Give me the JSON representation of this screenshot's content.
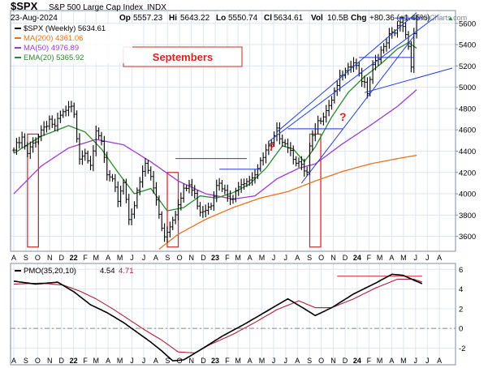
{
  "header": {
    "symbol": "$SPX",
    "description": "S&P 500 Large Cap Index",
    "exchange": "INDX",
    "date": "23-Aug-2024",
    "op_label": "Op",
    "op": "5557.23",
    "hi_label": "Hi",
    "hi": "5643.22",
    "lo_label": "Lo",
    "lo": "5550.74",
    "cl_label": "Cl",
    "cl": "5634.61",
    "vol_label": "Vol",
    "vol": "10.5B",
    "chg_label": "Chg",
    "chg": "+80.36 (+1.45%)",
    "chg_arrow": "▲",
    "watermark": "@ StockCharts.com"
  },
  "legend": {
    "price": {
      "label": "$SPX (Weekly) 5634.61",
      "color": "#000000"
    },
    "ma200": {
      "label": "MA(200) 4361.06",
      "color": "#e8731e"
    },
    "ma50": {
      "label": "MA(50) 4976.89",
      "color": "#9c3ccc"
    },
    "ema20": {
      "label": "EMA(20) 5365.92",
      "color": "#2a8a2a"
    }
  },
  "annotations": {
    "septembers": "Septembers",
    "question_1": "?",
    "question_2": "?"
  },
  "pmo_legend": {
    "label": "PMO(35,20,10)",
    "value1": "4.54",
    "value2": "4.71",
    "color1": "#000000",
    "color2": "#b0213b"
  },
  "colors": {
    "grid": "#dfe6f0",
    "box_red": "#d42424",
    "trend_blue": "#1f3fd6",
    "label_red": "#d42424"
  },
  "chart_data": [
    {
      "type": "line",
      "title": "$SPX S&P 500 Large Cap Index INDX",
      "y_axis_labels": [
        "3600",
        "3800",
        "4000",
        "4200",
        "4400",
        "4600",
        "4800",
        "5000",
        "5200",
        "5400",
        "5600"
      ],
      "y_axis_values": [
        3600,
        3800,
        4000,
        4200,
        4400,
        4600,
        4800,
        5000,
        5200,
        5400,
        5600
      ],
      "ylim": [
        3460,
        5720
      ],
      "x_axis_labels": [
        "A",
        "S",
        "O",
        "N",
        "D",
        "22",
        "F",
        "M",
        "A",
        "M",
        "J",
        "J",
        "A",
        "S",
        "O",
        "N",
        "D",
        "23",
        "F",
        "M",
        "A",
        "M",
        "J",
        "J",
        "A",
        "S",
        "O",
        "N",
        "D",
        "24",
        "F",
        "M",
        "A",
        "M",
        "J",
        "J",
        "A"
      ],
      "x_label_weeks": [
        0,
        4.4,
        8.7,
        13.1,
        17.4,
        21.8,
        26.1,
        30,
        34.4,
        38.7,
        43.1,
        47.4,
        51.8,
        56.1,
        60.5,
        64.8,
        69.2,
        73.5,
        77.9,
        81.8,
        86.1,
        90.5,
        94.8,
        99.2,
        103.5,
        107.9,
        112.2,
        116.6,
        120.9,
        125.3,
        129.6,
        133.5,
        137.9,
        142.2,
        146.6,
        150.9,
        155.3
      ],
      "bold_labels": [
        "22",
        "23",
        "24"
      ],
      "weeks": 160,
      "series": [
        {
          "name": "$SPX (Weekly)",
          "style": "ohlc-bars",
          "keypoints": [
            [
              0,
              4410
            ],
            [
              3,
              4510
            ],
            [
              5,
              4360
            ],
            [
              7,
              4470
            ],
            [
              10,
              4600
            ],
            [
              13,
              4700
            ],
            [
              15,
              4620
            ],
            [
              17,
              4720
            ],
            [
              19,
              4770
            ],
            [
              21,
              4800
            ],
            [
              22,
              4720
            ],
            [
              24,
              4360
            ],
            [
              26,
              4400
            ],
            [
              28,
              4300
            ],
            [
              30,
              4550
            ],
            [
              32,
              4480
            ],
            [
              34,
              4170
            ],
            [
              36,
              4100
            ],
            [
              38,
              3950
            ],
            [
              40,
              4120
            ],
            [
              42,
              3780
            ],
            [
              44,
              3900
            ],
            [
              46,
              4100
            ],
            [
              48,
              4280
            ],
            [
              50,
              4150
            ],
            [
              52,
              3950
            ],
            [
              54,
              3700
            ],
            [
              55,
              3600
            ],
            [
              56,
              3660
            ],
            [
              58,
              3780
            ],
            [
              60,
              3890
            ],
            [
              62,
              4020
            ],
            [
              64,
              4080
            ],
            [
              66,
              3980
            ],
            [
              68,
              3850
            ],
            [
              70,
              3870
            ],
            [
              72,
              3920
            ],
            [
              74,
              4110
            ],
            [
              76,
              4040
            ],
            [
              78,
              3970
            ],
            [
              80,
              3920
            ],
            [
              82,
              4100
            ],
            [
              84,
              4130
            ],
            [
              86,
              4150
            ],
            [
              88,
              4200
            ],
            [
              90,
              4280
            ],
            [
              92,
              4390
            ],
            [
              94,
              4450
            ],
            [
              96,
              4580
            ],
            [
              98,
              4520
            ],
            [
              100,
              4460
            ],
            [
              102,
              4360
            ],
            [
              104,
              4280
            ],
            [
              106,
              4200
            ],
            [
              107,
              4180
            ],
            [
              108,
              4420
            ],
            [
              110,
              4600
            ],
            [
              112,
              4720
            ],
            [
              114,
              4800
            ],
            [
              116,
              4900
            ],
            [
              118,
              5040
            ],
            [
              120,
              5100
            ],
            [
              122,
              5150
            ],
            [
              124,
              5230
            ],
            [
              126,
              5120
            ],
            [
              128,
              5050
            ],
            [
              129,
              4970
            ],
            [
              131,
              5220
            ],
            [
              133,
              5300
            ],
            [
              135,
              5350
            ],
            [
              137,
              5470
            ],
            [
              139,
              5500
            ],
            [
              141,
              5620
            ],
            [
              142,
              5580
            ],
            [
              144,
              5420
            ],
            [
              145,
              5200
            ],
            [
              146,
              5510
            ],
            [
              147,
              5634.61
            ]
          ]
        },
        {
          "name": "MA(200)",
          "value": 4361.06,
          "keypoints": [
            [
              53,
              3480
            ],
            [
              60,
              3620
            ],
            [
              70,
              3760
            ],
            [
              80,
              3870
            ],
            [
              90,
              3960
            ],
            [
              100,
              4020
            ],
            [
              110,
              4120
            ],
            [
              120,
              4210
            ],
            [
              130,
              4280
            ],
            [
              140,
              4330
            ],
            [
              147,
              4361.06
            ]
          ]
        },
        {
          "name": "MA(50)",
          "value": 4976.89,
          "keypoints": [
            [
              0,
              4000
            ],
            [
              10,
              4260
            ],
            [
              20,
              4430
            ],
            [
              30,
              4510
            ],
            [
              40,
              4460
            ],
            [
              50,
              4300
            ],
            [
              60,
              4120
            ],
            [
              70,
              4000
            ],
            [
              80,
              3950
            ],
            [
              88,
              3980
            ],
            [
              96,
              4140
            ],
            [
              104,
              4240
            ],
            [
              110,
              4280
            ],
            [
              120,
              4470
            ],
            [
              130,
              4640
            ],
            [
              140,
              4820
            ],
            [
              147,
              4976.89
            ]
          ]
        },
        {
          "name": "EMA(20)",
          "value": 5365.92,
          "keypoints": [
            [
              0,
              4380
            ],
            [
              10,
              4540
            ],
            [
              20,
              4640
            ],
            [
              26,
              4580
            ],
            [
              32,
              4420
            ],
            [
              38,
              4200
            ],
            [
              44,
              4000
            ],
            [
              50,
              4050
            ],
            [
              56,
              3840
            ],
            [
              62,
              3870
            ],
            [
              68,
              3980
            ],
            [
              74,
              3960
            ],
            [
              80,
              4010
            ],
            [
              86,
              4090
            ],
            [
              92,
              4240
            ],
            [
              98,
              4450
            ],
            [
              102,
              4420
            ],
            [
              106,
              4300
            ],
            [
              110,
              4440
            ],
            [
              116,
              4720
            ],
            [
              122,
              4950
            ],
            [
              128,
              5100
            ],
            [
              134,
              5220
            ],
            [
              140,
              5360
            ],
            [
              144,
              5420
            ],
            [
              147,
              5365.92
            ]
          ]
        }
      ],
      "trendlines": [
        {
          "from": [
            96,
            4580
          ],
          "to": [
            147,
            5700
          ]
        },
        {
          "from": [
            93,
            4490
          ],
          "to": [
            155,
            5680
          ]
        },
        {
          "from": [
            128,
            4950
          ],
          "to": [
            160,
            5180
          ]
        },
        {
          "from": [
            105,
            4100
          ],
          "to": [
            146,
            5480
          ]
        },
        {
          "from": [
            59,
            4330
          ],
          "to": [
            85,
            4330
          ]
        },
        {
          "from": [
            75,
            4230
          ],
          "to": [
            90,
            4230
          ]
        },
        {
          "from": [
            100,
            4610
          ],
          "to": [
            120,
            4610
          ]
        },
        {
          "from": [
            126,
            5280
          ],
          "to": [
            146,
            5280
          ]
        },
        {
          "from": [
            139,
            5650
          ],
          "to": [
            149,
            5650
          ]
        }
      ],
      "highlight_boxes": [
        {
          "from_week": 5,
          "to_week": 9,
          "low": 3500,
          "high": 4560
        },
        {
          "from_week": 56,
          "to_week": 60,
          "low": 3500,
          "high": 4200
        },
        {
          "from_week": 108,
          "to_week": 112,
          "low": 3500,
          "high": 4560
        }
      ]
    },
    {
      "type": "line",
      "title": "PMO(35,20,10)",
      "y_axis_labels": [
        "-2",
        "0",
        "2",
        "4",
        "6"
      ],
      "y_axis_values": [
        -2,
        0,
        2,
        4,
        6
      ],
      "ylim": [
        -3.7,
        6.6
      ],
      "zero_line": 0,
      "series": [
        {
          "name": "PMO",
          "value": 4.54,
          "keypoints": [
            [
              0,
              4.8
            ],
            [
              8,
              4.5
            ],
            [
              16,
              4.7
            ],
            [
              22,
              3.7
            ],
            [
              28,
              2.4
            ],
            [
              34,
              1.6
            ],
            [
              40,
              0.6
            ],
            [
              46,
              -0.6
            ],
            [
              50,
              -1.4
            ],
            [
              54,
              -2.3
            ],
            [
              58,
              -3.3
            ],
            [
              62,
              -3.2
            ],
            [
              68,
              -2.2
            ],
            [
              76,
              -0.8
            ],
            [
              84,
              0.4
            ],
            [
              92,
              1.7
            ],
            [
              100,
              3.0
            ],
            [
              106,
              2.0
            ],
            [
              110,
              1.3
            ],
            [
              116,
              2.1
            ],
            [
              124,
              3.5
            ],
            [
              132,
              4.6
            ],
            [
              138,
              5.5
            ],
            [
              142,
              5.4
            ],
            [
              146,
              4.9
            ],
            [
              149,
              4.54
            ]
          ]
        },
        {
          "name": "Signal",
          "value": 4.71,
          "keypoints": [
            [
              0,
              4.5
            ],
            [
              10,
              4.6
            ],
            [
              18,
              4.4
            ],
            [
              24,
              3.8
            ],
            [
              30,
              3.0
            ],
            [
              36,
              2.0
            ],
            [
              42,
              0.9
            ],
            [
              48,
              -0.2
            ],
            [
              54,
              -1.2
            ],
            [
              60,
              -2.4
            ],
            [
              66,
              -2.5
            ],
            [
              72,
              -1.6
            ],
            [
              80,
              -0.6
            ],
            [
              88,
              0.6
            ],
            [
              96,
              1.9
            ],
            [
              104,
              2.8
            ],
            [
              110,
              2.1
            ],
            [
              116,
              2.1
            ],
            [
              124,
              3.0
            ],
            [
              132,
              4.1
            ],
            [
              140,
              5.0
            ],
            [
              146,
              5.0
            ],
            [
              149,
              4.71
            ]
          ]
        }
      ],
      "hlines": [
        {
          "from_week": 118,
          "to_week": 149,
          "value": 5.3
        }
      ]
    }
  ]
}
